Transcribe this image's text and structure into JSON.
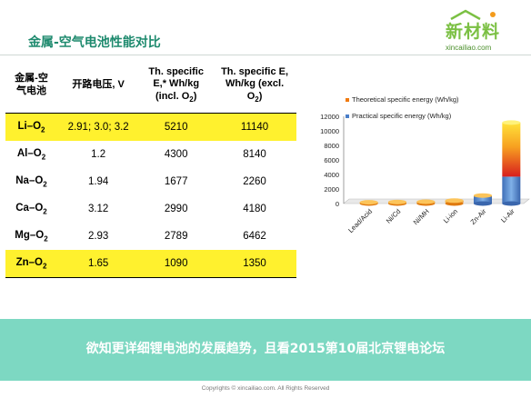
{
  "header": {
    "title": "金属-空气电池性能对比"
  },
  "logo": {
    "main": "新材料",
    "sub": "xincailiao.com"
  },
  "table": {
    "headers": [
      "金属-空气电池",
      "开路电压, V",
      "Th. specific E,* Wh/kg (incl. O2)",
      "Th. specific E, Wh/kg (excl. O2)"
    ],
    "rows": [
      {
        "name": "Li–O2",
        "voltage": "2.91; 3.0; 3.2",
        "incl": "5210",
        "excl": "11140",
        "highlight": true
      },
      {
        "name": "Al–O2",
        "voltage": "1.2",
        "incl": "4300",
        "excl": "8140",
        "highlight": false
      },
      {
        "name": "Na–O2",
        "voltage": "1.94",
        "incl": "1677",
        "excl": "2260",
        "highlight": false
      },
      {
        "name": "Ca–O2",
        "voltage": "3.12",
        "incl": "2990",
        "excl": "4180",
        "highlight": false
      },
      {
        "name": "Mg–O2",
        "voltage": "2.93",
        "incl": "2789",
        "excl": "6462",
        "highlight": false
      },
      {
        "name": "Zn–O2",
        "voltage": "1.65",
        "incl": "1090",
        "excl": "1350",
        "highlight": true
      }
    ]
  },
  "chart_data": {
    "type": "bar",
    "categories": [
      "Lead/Acid",
      "Ni/Cd",
      "Ni/MH",
      "Li-ion",
      "Zn-Air",
      "Li-Air"
    ],
    "series": [
      {
        "name": "Theoretical specific energy (Wh/kg)",
        "color": "#f07a10",
        "values": [
          170,
          210,
          250,
          400,
          1100,
          11140
        ]
      },
      {
        "name": "Practical specific energy (Wh/kg)",
        "color": "#4a7ec8",
        "values": [
          30,
          45,
          80,
          160,
          1000,
          3700
        ]
      }
    ],
    "ylim": [
      0,
      12000
    ],
    "yticks": [
      0,
      2000,
      4000,
      6000,
      8000,
      10000,
      12000
    ],
    "legend": "top"
  },
  "banner": {
    "text": "欲知更详细锂电池的发展趋势，且看2015第10届北京锂电论坛"
  },
  "footer": {
    "text": "Copyrights © xincailiao.com. All Rights Reserved"
  }
}
